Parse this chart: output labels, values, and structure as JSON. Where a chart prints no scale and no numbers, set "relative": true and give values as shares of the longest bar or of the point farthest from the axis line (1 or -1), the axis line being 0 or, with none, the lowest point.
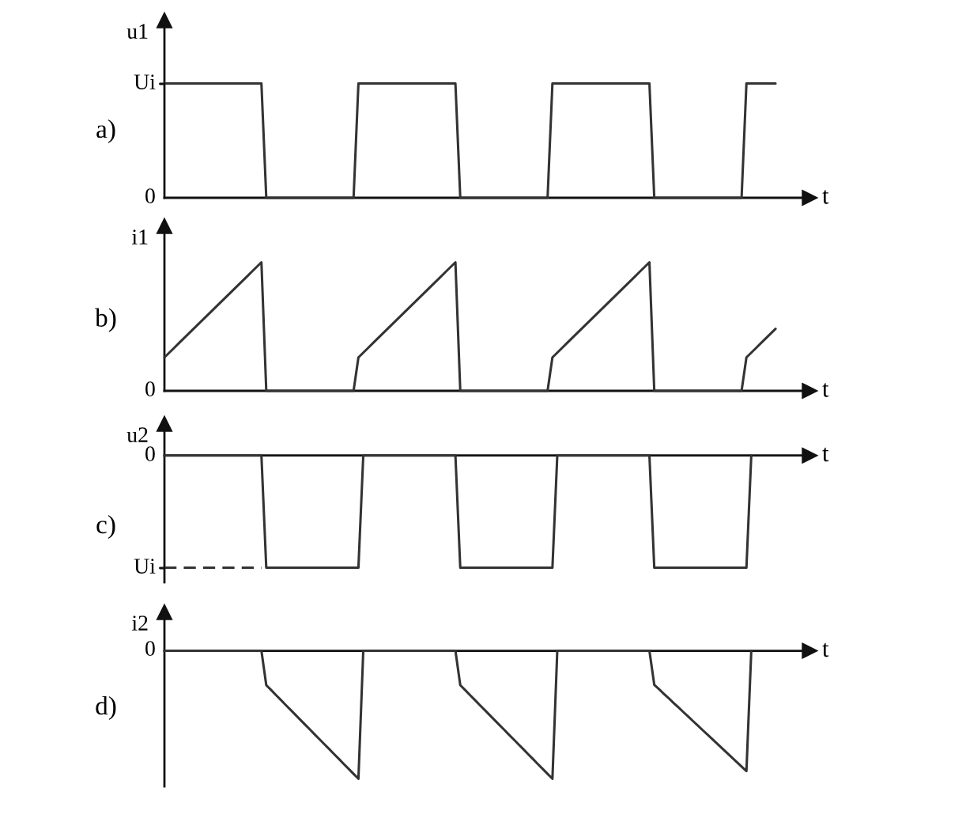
{
  "chart_data": [
    {
      "type": "line",
      "title": "a)",
      "xlabel": "t",
      "ylabel": "u1",
      "relative": true,
      "annotations": [
        "Ui",
        "0"
      ],
      "categories": [
        null,
        null,
        null,
        null,
        null,
        null,
        null,
        null,
        null,
        null,
        null,
        null,
        null,
        null,
        null,
        null,
        null,
        null,
        null,
        null,
        null,
        null,
        null,
        null,
        null,
        null,
        null,
        null,
        null,
        null,
        null,
        null,
        null,
        null,
        null,
        null,
        null,
        null,
        null,
        null,
        null,
        null,
        null,
        null,
        null,
        null,
        null,
        null,
        null,
        null,
        null,
        null,
        null,
        null,
        null,
        null,
        null,
        null,
        null,
        null,
        null,
        null,
        null,
        null,
        null,
        null,
        null,
        null,
        null,
        null,
        null,
        null,
        null,
        null,
        null,
        null,
        null,
        null,
        null,
        null,
        null,
        null,
        null,
        null,
        null,
        null,
        null,
        null,
        null,
        null,
        null,
        null,
        null,
        null,
        null,
        null,
        null,
        null,
        null,
        null,
        null,
        null,
        null,
        null,
        null,
        null,
        null,
        null,
        null,
        null,
        null,
        null,
        null,
        null,
        null,
        null,
        null,
        null,
        null,
        null,
        null,
        null,
        null,
        null,
        null,
        null,
        null,
        null,
        null,
        null,
        null,
        null,
        null,
        null
      ],
      "series": [
        {
          "color": "#333333",
          "values": [
            1,
            1,
            1,
            1,
            1,
            1,
            1,
            1,
            1,
            1,
            1,
            1,
            1,
            1,
            1,
            1,
            1,
            1,
            1,
            1,
            1,
            0,
            0,
            0,
            0,
            0,
            0,
            0,
            0,
            0,
            0,
            0,
            0,
            0,
            0,
            0,
            0,
            0,
            0,
            0,
            1,
            1,
            1,
            1,
            1,
            1,
            1,
            1,
            1,
            1,
            1,
            1,
            1,
            1,
            1,
            1,
            1,
            1,
            1,
            1,
            1,
            0,
            0,
            0,
            0,
            0,
            0,
            0,
            0,
            0,
            0,
            0,
            0,
            0,
            0,
            0,
            0,
            0,
            0,
            0,
            1,
            1,
            1,
            1,
            1,
            1,
            1,
            1,
            1,
            1,
            1,
            1,
            1,
            1,
            1,
            1,
            1,
            1,
            1,
            1,
            1,
            0,
            0,
            0,
            0,
            0,
            0,
            0,
            0,
            0,
            0,
            0,
            0,
            0,
            0,
            0,
            0,
            0,
            0,
            0,
            1,
            1,
            1,
            1,
            1,
            1,
            1,
            null,
            null,
            null,
            null,
            null,
            null,
            null
          ]
        }
      ]
    },
    {
      "type": "line",
      "title": "b)",
      "xlabel": "t",
      "ylabel": "i1",
      "relative": true,
      "annotations": [
        "0"
      ],
      "categories": [
        null,
        null,
        null,
        null,
        null,
        null,
        null,
        null,
        null,
        null,
        null,
        null,
        null,
        null,
        null,
        null,
        null,
        null,
        null,
        null,
        null,
        null,
        null,
        null,
        null,
        null,
        null,
        null,
        null,
        null,
        null,
        null,
        null,
        null,
        null,
        null,
        null,
        null,
        null,
        null,
        null,
        null,
        null,
        null,
        null,
        null,
        null,
        null,
        null,
        null,
        null,
        null,
        null,
        null,
        null,
        null,
        null,
        null,
        null,
        null,
        null,
        null,
        null,
        null,
        null,
        null,
        null,
        null,
        null,
        null,
        null,
        null,
        null,
        null,
        null,
        null,
        null,
        null,
        null,
        null,
        null,
        null,
        null,
        null,
        null,
        null,
        null,
        null,
        null,
        null,
        null,
        null,
        null,
        null,
        null,
        null,
        null,
        null,
        null,
        null,
        null,
        null,
        null,
        null,
        null,
        null,
        null,
        null,
        null,
        null,
        null,
        null,
        null,
        null,
        null,
        null,
        null,
        null,
        null,
        null,
        null,
        null,
        null,
        null,
        null,
        null,
        null,
        null,
        null,
        null,
        null,
        null,
        null,
        null
      ],
      "series": [
        {
          "color": "#333333",
          "values": [
            0.26,
            0.297,
            0.334,
            0.371,
            0.408,
            0.445,
            0.482,
            0.519,
            0.556,
            0.593,
            0.63,
            0.667,
            0.704,
            0.741,
            0.778,
            0.815,
            0.852,
            0.889,
            0.926,
            0.963,
            1,
            0,
            0,
            0,
            0,
            0,
            0,
            0,
            0,
            0,
            0,
            0,
            0,
            0,
            0,
            0,
            0,
            0,
            0,
            0,
            0.26,
            0.297,
            0.334,
            0.371,
            0.408,
            0.445,
            0.482,
            0.519,
            0.556,
            0.593,
            0.63,
            0.667,
            0.704,
            0.741,
            0.778,
            0.815,
            0.852,
            0.889,
            0.926,
            0.963,
            1,
            0,
            0,
            0,
            0,
            0,
            0,
            0,
            0,
            0,
            0,
            0,
            0,
            0,
            0,
            0,
            0,
            0,
            0,
            0,
            0.26,
            0.297,
            0.334,
            0.371,
            0.408,
            0.445,
            0.482,
            0.519,
            0.556,
            0.593,
            0.63,
            0.667,
            0.704,
            0.741,
            0.778,
            0.815,
            0.852,
            0.889,
            0.926,
            0.963,
            1,
            0,
            0,
            0,
            0,
            0,
            0,
            0,
            0,
            0,
            0,
            0,
            0,
            0,
            0,
            0,
            0,
            0,
            0,
            0,
            0.26,
            0.297,
            0.334,
            0.371,
            0.408,
            0.445,
            0.482,
            null,
            null,
            null,
            null,
            null,
            null,
            null
          ]
        }
      ]
    },
    {
      "type": "line",
      "title": "c)",
      "xlabel": "t",
      "ylabel": "u2",
      "relative": true,
      "annotations": [
        "0",
        "Ui"
      ],
      "categories": [
        null,
        null,
        null,
        null,
        null,
        null,
        null,
        null,
        null,
        null,
        null,
        null,
        null,
        null,
        null,
        null,
        null,
        null,
        null,
        null,
        null,
        null,
        null,
        null,
        null,
        null,
        null,
        null,
        null,
        null,
        null,
        null,
        null,
        null,
        null,
        null,
        null,
        null,
        null,
        null,
        null,
        null,
        null,
        null,
        null,
        null,
        null,
        null,
        null,
        null,
        null,
        null,
        null,
        null,
        null,
        null,
        null,
        null,
        null,
        null,
        null,
        null,
        null,
        null,
        null,
        null,
        null,
        null,
        null,
        null,
        null,
        null,
        null,
        null,
        null,
        null,
        null,
        null,
        null,
        null,
        null,
        null,
        null,
        null,
        null,
        null,
        null,
        null,
        null,
        null,
        null,
        null,
        null,
        null,
        null,
        null,
        null,
        null,
        null,
        null,
        null,
        null,
        null,
        null,
        null,
        null,
        null,
        null,
        null,
        null,
        null,
        null,
        null,
        null,
        null,
        null,
        null,
        null,
        null,
        null,
        null,
        null,
        null,
        null,
        null,
        null,
        null,
        null,
        null,
        null,
        null,
        null,
        null,
        null
      ],
      "series": [
        {
          "color": "#333333",
          "values": [
            0,
            0,
            0,
            0,
            0,
            0,
            0,
            0,
            0,
            0,
            0,
            0,
            0,
            0,
            0,
            0,
            0,
            0,
            0,
            0,
            0,
            -1,
            -1,
            -1,
            -1,
            -1,
            -1,
            -1,
            -1,
            -1,
            -1,
            -1,
            -1,
            -1,
            -1,
            -1,
            -1,
            -1,
            -1,
            -1,
            -1,
            0,
            0,
            0,
            0,
            0,
            0,
            0,
            0,
            0,
            0,
            0,
            0,
            0,
            0,
            0,
            0,
            0,
            0,
            0,
            0,
            -1,
            -1,
            -1,
            -1,
            -1,
            -1,
            -1,
            -1,
            -1,
            -1,
            -1,
            -1,
            -1,
            -1,
            -1,
            -1,
            -1,
            -1,
            -1,
            -1,
            0,
            0,
            0,
            0,
            0,
            0,
            0,
            0,
            0,
            0,
            0,
            0,
            0,
            0,
            0,
            0,
            0,
            0,
            0,
            0,
            -1,
            -1,
            -1,
            -1,
            -1,
            -1,
            -1,
            -1,
            -1,
            -1,
            -1,
            -1,
            -1,
            -1,
            -1,
            -1,
            -1,
            -1,
            -1,
            -1,
            0,
            null,
            null,
            null,
            null,
            null,
            null,
            null,
            null,
            null,
            null,
            null,
            null
          ]
        },
        {
          "color": "#333333",
          "line_style": "dashed",
          "values": [
            -1,
            -1,
            -1,
            -1,
            -1,
            -1,
            -1,
            -1,
            -1,
            -1,
            -1,
            -1,
            -1,
            -1,
            -1,
            -1,
            -1,
            -1,
            -1,
            -1,
            -1,
            null,
            null,
            null,
            null,
            null,
            null,
            null,
            null,
            null,
            null,
            null,
            null,
            null,
            null,
            null,
            null,
            null,
            null,
            null,
            null,
            null,
            null,
            null,
            null,
            null,
            null,
            null,
            null,
            null,
            null,
            null,
            null,
            null,
            null,
            null,
            null,
            null,
            null,
            null,
            null,
            null,
            null,
            null,
            null,
            null,
            null,
            null,
            null,
            null,
            null,
            null,
            null,
            null,
            null,
            null,
            null,
            null,
            null,
            null,
            null,
            null,
            null,
            null,
            null,
            null,
            null,
            null,
            null,
            null,
            null,
            null,
            null,
            null,
            null,
            null,
            null,
            null,
            null,
            null,
            null,
            null,
            null,
            null,
            null,
            null,
            null,
            null,
            null,
            null,
            null,
            null,
            null,
            null,
            null,
            null,
            null,
            null,
            null,
            null,
            null,
            null,
            null,
            null,
            null,
            null,
            null,
            null,
            null,
            null,
            null,
            null,
            null,
            null
          ]
        }
      ]
    },
    {
      "type": "line",
      "title": "d)",
      "xlabel": "t",
      "ylabel": "i2",
      "relative": true,
      "annotations": [
        "0"
      ],
      "categories": [
        null,
        null,
        null,
        null,
        null,
        null,
        null,
        null,
        null,
        null,
        null,
        null,
        null,
        null,
        null,
        null,
        null,
        null,
        null,
        null,
        null,
        null,
        null,
        null,
        null,
        null,
        null,
        null,
        null,
        null,
        null,
        null,
        null,
        null,
        null,
        null,
        null,
        null,
        null,
        null,
        null,
        null,
        null,
        null,
        null,
        null,
        null,
        null,
        null,
        null,
        null,
        null,
        null,
        null,
        null,
        null,
        null,
        null,
        null,
        null,
        null,
        null,
        null,
        null,
        null,
        null,
        null,
        null,
        null,
        null,
        null,
        null,
        null,
        null,
        null,
        null,
        null,
        null,
        null,
        null,
        null,
        null,
        null,
        null,
        null,
        null,
        null,
        null,
        null,
        null,
        null,
        null,
        null,
        null,
        null,
        null,
        null,
        null,
        null,
        null,
        null,
        null,
        null,
        null,
        null,
        null,
        null,
        null,
        null,
        null,
        null,
        null,
        null,
        null,
        null,
        null,
        null,
        null,
        null,
        null,
        null,
        null,
        null,
        null,
        null,
        null,
        null,
        null,
        null,
        null,
        null,
        null,
        null,
        null
      ],
      "series": [
        {
          "color": "#333333",
          "values": [
            0,
            0,
            0,
            0,
            0,
            0,
            0,
            0,
            0,
            0,
            0,
            0,
            0,
            0,
            0,
            0,
            0,
            0,
            0,
            0,
            0,
            -0.269,
            -0.307,
            -0.346,
            -0.384,
            -0.423,
            -0.461,
            -0.5,
            -0.538,
            -0.577,
            -0.615,
            -0.654,
            -0.692,
            -0.731,
            -0.769,
            -0.808,
            -0.846,
            -0.885,
            -0.923,
            -0.962,
            -1,
            0,
            0,
            0,
            0,
            0,
            0,
            0,
            0,
            0,
            0,
            0,
            0,
            0,
            0,
            0,
            0,
            0,
            0,
            0,
            0,
            -0.269,
            -0.307,
            -0.346,
            -0.384,
            -0.423,
            -0.461,
            -0.5,
            -0.538,
            -0.577,
            -0.615,
            -0.654,
            -0.692,
            -0.731,
            -0.769,
            -0.808,
            -0.846,
            -0.885,
            -0.923,
            -0.962,
            -1,
            0,
            0,
            0,
            0,
            0,
            0,
            0,
            0,
            0,
            0,
            0,
            0,
            0,
            0,
            0,
            0,
            0,
            0,
            0,
            0,
            -0.266,
            -0.301,
            -0.337,
            -0.372,
            -0.408,
            -0.443,
            -0.479,
            -0.514,
            -0.55,
            -0.585,
            -0.621,
            -0.656,
            -0.692,
            -0.727,
            -0.763,
            -0.798,
            -0.834,
            -0.869,
            -0.905,
            -0.94,
            0,
            null,
            null,
            null,
            null,
            null,
            null,
            null,
            null,
            null,
            null,
            null,
            null
          ]
        }
      ]
    }
  ]
}
